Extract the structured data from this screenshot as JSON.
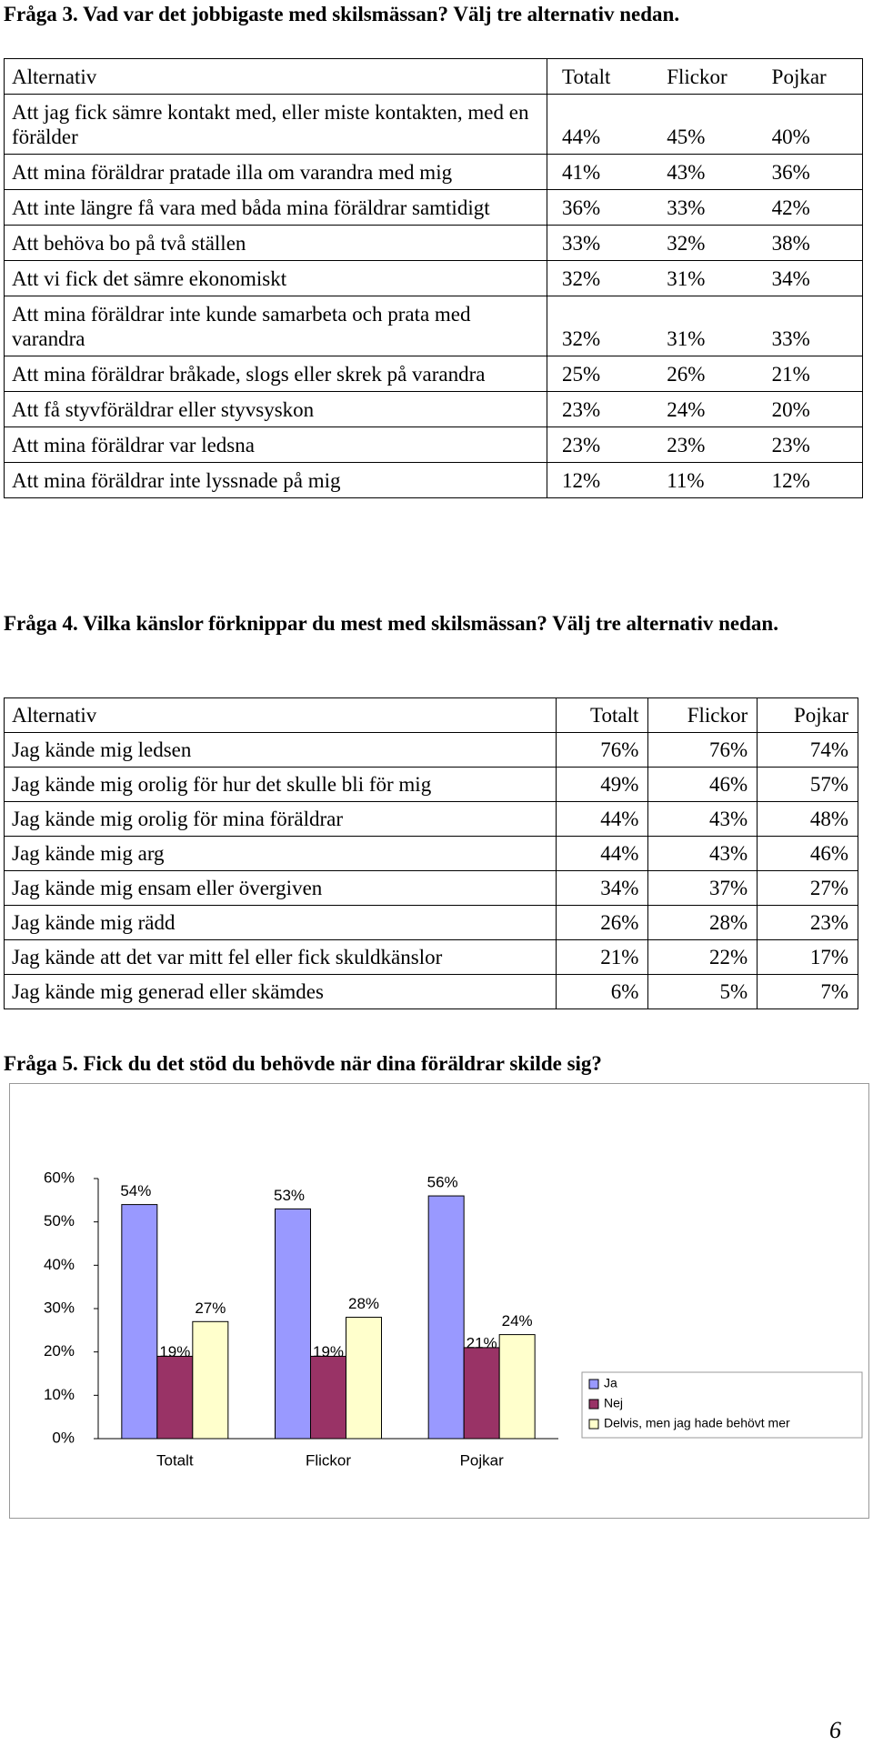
{
  "question3": {
    "title": "Fråga 3. Vad var det jobbigaste med skilsmässan? Välj tre alternativ nedan.",
    "table": {
      "header": [
        "Alternativ",
        "Totalt",
        "Flickor",
        "Pojkar"
      ],
      "rows": [
        [
          "Att jag fick sämre kontakt med, eller miste kontakten, med en förälder",
          "44%",
          "45%",
          "40%"
        ],
        [
          "Att mina föräldrar pratade illa om varandra med mig",
          "41%",
          "43%",
          "36%"
        ],
        [
          "Att inte längre få vara med båda mina föräldrar samtidigt",
          "36%",
          "33%",
          "42%"
        ],
        [
          "Att behöva bo på två ställen",
          "33%",
          "32%",
          "38%"
        ],
        [
          "Att vi fick det sämre ekonomiskt",
          "32%",
          "31%",
          "34%"
        ],
        [
          "Att mina föräldrar inte kunde samarbeta och prata med varandra",
          "32%",
          "31%",
          "33%"
        ],
        [
          "Att mina föräldrar bråkade, slogs eller skrek på varandra",
          "25%",
          "26%",
          "21%"
        ],
        [
          "Att få styvföräldrar eller styvsyskon",
          "23%",
          "24%",
          "20%"
        ],
        [
          "Att mina föräldrar var ledsna",
          "23%",
          "23%",
          "23%"
        ],
        [
          "Att mina föräldrar inte lyssnade på mig",
          "12%",
          "11%",
          "12%"
        ]
      ]
    }
  },
  "question4": {
    "title": "Fråga 4. Vilka känslor förknippar du mest med skilsmässan? Välj tre alternativ nedan.",
    "table": {
      "header": [
        "Alternativ",
        "Totalt",
        "Flickor",
        "Pojkar"
      ],
      "rows": [
        [
          "Jag kände mig ledsen",
          "76%",
          "76%",
          "74%"
        ],
        [
          "Jag kände mig orolig för hur det skulle bli för mig",
          "49%",
          "46%",
          "57%"
        ],
        [
          "Jag kände mig orolig för mina föräldrar",
          "44%",
          "43%",
          "48%"
        ],
        [
          "Jag kände mig arg",
          "44%",
          "43%",
          "46%"
        ],
        [
          "Jag kände mig ensam eller övergiven",
          "34%",
          "37%",
          "27%"
        ],
        [
          "Jag kände mig rädd",
          "26%",
          "28%",
          "23%"
        ],
        [
          "Jag kände att det var mitt fel eller fick skuldkänslor",
          "21%",
          "22%",
          "17%"
        ],
        [
          "Jag kände mig generad eller skämdes",
          "6%",
          "5%",
          "7%"
        ]
      ]
    }
  },
  "question5": {
    "title": "Fråga 5. Fick du det stöd du behövde när dina föräldrar skilde sig?",
    "chart": {
      "type": "bar",
      "categories": [
        "Totalt",
        "Flickor",
        "Pojkar"
      ],
      "series": [
        {
          "name": "Ja",
          "color": "#9999ff",
          "values": [
            54,
            53,
            56
          ],
          "value_labels": [
            "54%",
            "53%",
            "56%"
          ]
        },
        {
          "name": "Nej",
          "color": "#993366",
          "values": [
            19,
            19,
            21
          ],
          "value_labels": [
            "19%",
            "19%",
            "21%"
          ]
        },
        {
          "name": "Delvis, men jag hade behövt mer",
          "color": "#ffffcc",
          "values": [
            27,
            28,
            24
          ],
          "value_labels": [
            "27%",
            "28%",
            "24%"
          ]
        }
      ],
      "ylim": [
        0,
        60
      ],
      "yticks": [
        {
          "value": 0,
          "label": "0%"
        },
        {
          "value": 10,
          "label": "10%"
        },
        {
          "value": 20,
          "label": "20%"
        },
        {
          "value": 30,
          "label": "30%"
        },
        {
          "value": 40,
          "label": "40%"
        },
        {
          "value": 50,
          "label": "50%"
        },
        {
          "value": 60,
          "label": "60%"
        }
      ]
    }
  },
  "page_number": "6"
}
